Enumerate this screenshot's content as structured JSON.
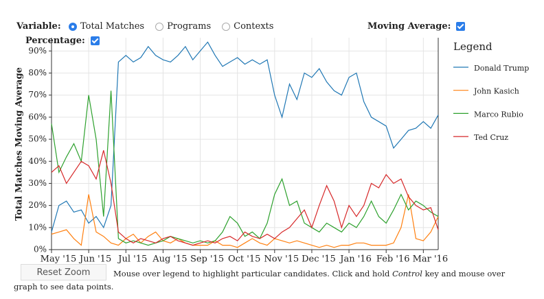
{
  "controls": {
    "variable_label": "Variable:",
    "options": [
      "Total Matches",
      "Programs",
      "Contexts"
    ],
    "selected": 0,
    "moving_average_label": "Moving Average:",
    "moving_average": true,
    "percentage_label": "Percentage:",
    "percentage": true,
    "reset_button": "Reset Zoom",
    "help": {
      "before": "Mouse over legend to highlight particular candidates. Click and hold",
      "emphasis": "Control",
      "after": "key and mouse over graph to see data points."
    }
  },
  "chart_data": {
    "type": "line",
    "y_label": "Total Matches Moving Average",
    "legend_title": "Legend",
    "legend": "right",
    "grid": true,
    "categories": [
      "May '15",
      null,
      null,
      null,
      null,
      "Jun '15",
      null,
      null,
      null,
      null,
      "Jul '15",
      null,
      null,
      null,
      null,
      "Aug '15",
      null,
      null,
      null,
      null,
      "Sep '15",
      null,
      null,
      null,
      null,
      "Oct '15",
      null,
      null,
      null,
      null,
      "Nov '15",
      null,
      null,
      null,
      null,
      "Dec '15",
      null,
      null,
      null,
      null,
      "Jan '16",
      null,
      null,
      null,
      null,
      "Feb '16",
      null,
      null,
      null,
      null,
      "Mar '16",
      null,
      null
    ],
    "ylim": [
      0,
      96
    ],
    "yticks": [
      {
        "value": 0,
        "label": "0%"
      },
      {
        "value": 10,
        "label": "10%"
      },
      {
        "value": 20,
        "label": "20%"
      },
      {
        "value": 30,
        "label": "30%"
      },
      {
        "value": 40,
        "label": "40%"
      },
      {
        "value": 50,
        "label": "50%"
      },
      {
        "value": 60,
        "label": "60%"
      },
      {
        "value": 70,
        "label": "70%"
      },
      {
        "value": 80,
        "label": "80%"
      },
      {
        "value": 90,
        "label": "90%"
      }
    ],
    "series": [
      {
        "name": "Donald Trump",
        "color": "#1f77b4",
        "values": [
          8,
          20,
          22,
          17,
          18,
          12,
          15,
          10,
          20,
          85,
          88,
          85,
          87,
          92,
          88,
          86,
          85,
          88,
          92,
          86,
          90,
          94,
          88,
          83,
          85,
          87,
          84,
          86,
          84,
          86,
          70,
          60,
          75,
          68,
          80,
          78,
          82,
          76,
          72,
          70,
          78,
          80,
          67,
          60,
          58,
          56,
          46,
          50,
          54,
          55,
          58,
          55,
          61
        ]
      },
      {
        "name": "John Kasich",
        "color": "#ff7f0e",
        "values": [
          7,
          8,
          9,
          5,
          2,
          25,
          8,
          6,
          3,
          2,
          5,
          7,
          3,
          6,
          8,
          4,
          3,
          5,
          3,
          2,
          2,
          2,
          4,
          2,
          2,
          1,
          3,
          5,
          3,
          2,
          5,
          4,
          3,
          4,
          3,
          2,
          1,
          2,
          1,
          2,
          2,
          3,
          3,
          2,
          2,
          2,
          3,
          10,
          25,
          5,
          4,
          8,
          15
        ]
      },
      {
        "name": "Marco Rubio",
        "color": "#2ca02c",
        "values": [
          57,
          35,
          42,
          48,
          40,
          70,
          50,
          15,
          72,
          5,
          3,
          4,
          3,
          2,
          3,
          4,
          6,
          5,
          4,
          3,
          4,
          3,
          4,
          8,
          15,
          12,
          6,
          8,
          5,
          12,
          25,
          32,
          20,
          22,
          12,
          10,
          8,
          12,
          10,
          8,
          12,
          10,
          15,
          22,
          15,
          12,
          18,
          25,
          18,
          22,
          20,
          17,
          15
        ]
      },
      {
        "name": "Ted Cruz",
        "color": "#d62728",
        "values": [
          35,
          38,
          30,
          35,
          40,
          38,
          32,
          45,
          30,
          8,
          5,
          3,
          5,
          4,
          3,
          5,
          6,
          4,
          3,
          2,
          3,
          4,
          3,
          5,
          6,
          4,
          8,
          6,
          5,
          7,
          5,
          8,
          10,
          14,
          18,
          10,
          20,
          29,
          22,
          10,
          20,
          15,
          20,
          30,
          28,
          34,
          30,
          32,
          24,
          20,
          18,
          19,
          9
        ]
      }
    ]
  }
}
